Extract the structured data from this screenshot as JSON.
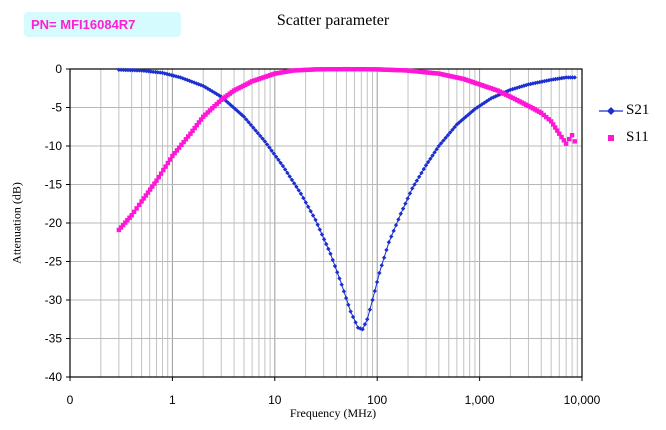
{
  "header": {
    "part_number": "PN= MFI16084R7"
  },
  "chart_data": {
    "type": "scatter",
    "title": "Scatter parameter",
    "xlabel": "Frequency (MHz)",
    "ylabel": "Attenuation (dB)",
    "x_scale": "log",
    "xlim": [
      0.1,
      10000
    ],
    "ylim": [
      -40,
      0
    ],
    "x_ticks": [
      0.1,
      1,
      10,
      100,
      1000,
      10000
    ],
    "x_tick_labels": [
      "0",
      "1",
      "10",
      "100",
      "1,000",
      "10,000"
    ],
    "y_ticks": [
      0,
      -5,
      -10,
      -15,
      -20,
      -25,
      -30,
      -35,
      -40
    ],
    "y_tick_labels": [
      "0",
      "-5",
      "-10",
      "-15",
      "-20",
      "-25",
      "-30",
      "-35",
      "-40"
    ],
    "grid": true,
    "legend_position": "right",
    "series": [
      {
        "name": "S21",
        "color": "#1c2fd0",
        "marker": "diamond",
        "points": [
          [
            0.3,
            -0.1
          ],
          [
            0.5,
            -0.2
          ],
          [
            0.8,
            -0.5
          ],
          [
            1.2,
            -1.1
          ],
          [
            2,
            -2.2
          ],
          [
            3,
            -3.6
          ],
          [
            5,
            -6.2
          ],
          [
            8,
            -9.4
          ],
          [
            12,
            -12.6
          ],
          [
            18,
            -16.2
          ],
          [
            25,
            -19.6
          ],
          [
            35,
            -24
          ],
          [
            45,
            -28
          ],
          [
            55,
            -31.5
          ],
          [
            65,
            -33.6
          ],
          [
            72,
            -33.8
          ],
          [
            80,
            -32.5
          ],
          [
            90,
            -30
          ],
          [
            105,
            -26.5
          ],
          [
            130,
            -22.5
          ],
          [
            170,
            -18.8
          ],
          [
            220,
            -15.5
          ],
          [
            300,
            -12.5
          ],
          [
            400,
            -10
          ],
          [
            600,
            -7.2
          ],
          [
            900,
            -5.2
          ],
          [
            1300,
            -3.8
          ],
          [
            2000,
            -2.7
          ],
          [
            3000,
            -2
          ],
          [
            5000,
            -1.4
          ],
          [
            7000,
            -1.1
          ],
          [
            8500,
            -1.1
          ]
        ]
      },
      {
        "name": "S11",
        "color": "#ff16d6",
        "marker": "square",
        "points": [
          [
            0.3,
            -20.9
          ],
          [
            0.4,
            -19
          ],
          [
            0.5,
            -17.2
          ],
          [
            0.7,
            -14.5
          ],
          [
            1,
            -11.3
          ],
          [
            1.5,
            -8.4
          ],
          [
            2,
            -6.2
          ],
          [
            3,
            -4
          ],
          [
            4,
            -2.8
          ],
          [
            6,
            -1.6
          ],
          [
            10,
            -0.6
          ],
          [
            15,
            -0.2
          ],
          [
            25,
            -0.05
          ],
          [
            50,
            -0.02
          ],
          [
            100,
            -0.05
          ],
          [
            200,
            -0.2
          ],
          [
            400,
            -0.6
          ],
          [
            700,
            -1.3
          ],
          [
            1000,
            -2
          ],
          [
            1500,
            -2.8
          ],
          [
            2000,
            -3.6
          ],
          [
            3000,
            -4.8
          ],
          [
            4000,
            -5.7
          ],
          [
            5000,
            -6.8
          ],
          [
            6000,
            -8.4
          ],
          [
            7000,
            -9.7
          ],
          [
            7500,
            -9.1
          ],
          [
            8000,
            -8.6
          ],
          [
            8500,
            -9.4
          ]
        ]
      }
    ]
  }
}
